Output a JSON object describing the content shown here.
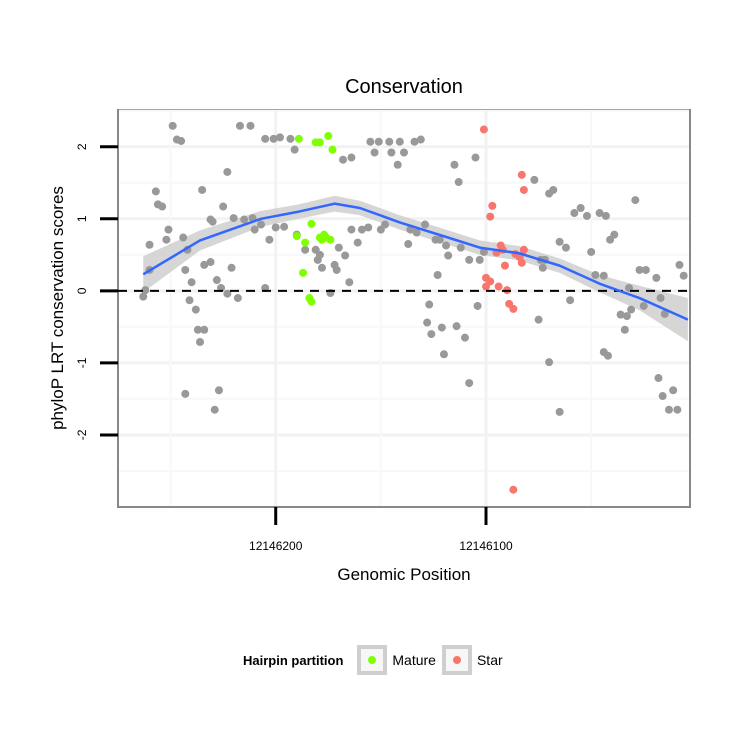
{
  "chart_data": {
    "type": "scatter",
    "title": "Conservation",
    "xlabel": "Genomic Position",
    "ylabel": "phyloP LRT conservation scores",
    "xlim": [
      12146275,
      12146003
    ],
    "ylim": [
      -3.0,
      2.51
    ],
    "x_reversed": true,
    "x_ticks": [
      12146200,
      12146100
    ],
    "x_tick_labels": [
      "12146200",
      "12146100"
    ],
    "y_ticks": [
      2,
      1,
      0,
      -1,
      -2
    ],
    "y_tick_labels": [
      "2",
      "1",
      "0",
      "-1",
      "-2"
    ],
    "reference_line": {
      "y": 0,
      "style": "dashed"
    },
    "grid": true,
    "legend": {
      "title": "Hairpin partition",
      "placement": "bottom",
      "entries": [
        {
          "name": "Mature",
          "color": "#7fff00"
        },
        {
          "name": "Star",
          "color": "#f8766d"
        }
      ]
    },
    "colors": {
      "other": "#999999",
      "Mature": "#7fff00",
      "Star": "#f8766d",
      "smooth": "#3366ff",
      "band": "#cccccc"
    },
    "series": [
      {
        "name": "Other",
        "points": [
          [
            12146263,
            -0.08
          ],
          [
            12146262,
            0.01
          ],
          [
            12146260,
            0.29
          ],
          [
            12146260,
            0.64
          ],
          [
            12146257,
            1.38
          ],
          [
            12146256,
            1.2
          ],
          [
            12146254,
            1.17
          ],
          [
            12146252,
            0.71
          ],
          [
            12146251,
            0.85
          ],
          [
            12146249,
            2.29
          ],
          [
            12146247,
            2.1
          ],
          [
            12146245,
            2.08
          ],
          [
            12146244,
            0.74
          ],
          [
            12146243,
            -1.43
          ],
          [
            12146243,
            0.29
          ],
          [
            12146241,
            -0.13
          ],
          [
            12146242,
            0.57
          ],
          [
            12146240,
            0.12
          ],
          [
            12146238,
            -0.26
          ],
          [
            12146237,
            -0.54
          ],
          [
            12146236,
            -0.71
          ],
          [
            12146234,
            -0.54
          ],
          [
            12146235,
            1.4
          ],
          [
            12146234,
            0.36
          ],
          [
            12146231,
            0.4
          ],
          [
            12146231,
            0.99
          ],
          [
            12146230,
            0.96
          ],
          [
            12146229,
            -1.65
          ],
          [
            12146228,
            0.15
          ],
          [
            12146227,
            -1.38
          ],
          [
            12146226,
            0.04
          ],
          [
            12146225,
            1.17
          ],
          [
            12146223,
            1.65
          ],
          [
            12146223,
            -0.04
          ],
          [
            12146221,
            0.32
          ],
          [
            12146220,
            1.01
          ],
          [
            12146218,
            -0.1
          ],
          [
            12146217,
            2.29
          ],
          [
            12146215,
            0.99
          ],
          [
            12146212,
            2.29
          ],
          [
            12146211,
            1.01
          ],
          [
            12146210,
            0.85
          ],
          [
            12146207,
            0.92
          ],
          [
            12146205,
            2.11
          ],
          [
            12146205,
            0.04
          ],
          [
            12146203,
            0.71
          ],
          [
            12146201,
            2.11
          ],
          [
            12146200,
            0.88
          ],
          [
            12146198,
            2.13
          ],
          [
            12146196,
            0.89
          ],
          [
            12146193,
            2.11
          ],
          [
            12146191,
            1.96
          ],
          [
            12146190,
            0.78
          ],
          [
            12146186,
            0.57
          ],
          [
            12146181,
            0.57
          ],
          [
            12146180,
            0.43
          ],
          [
            12146179,
            0.5
          ],
          [
            12146178,
            0.32
          ],
          [
            12146174,
            -0.03
          ],
          [
            12146172,
            0.36
          ],
          [
            12146171,
            0.29
          ],
          [
            12146170,
            0.6
          ],
          [
            12146168,
            1.82
          ],
          [
            12146167,
            0.49
          ],
          [
            12146164,
            1.85
          ],
          [
            12146165,
            0.12
          ],
          [
            12146164,
            0.85
          ],
          [
            12146161,
            0.67
          ],
          [
            12146159,
            0.85
          ],
          [
            12146156,
            0.88
          ],
          [
            12146155,
            2.07
          ],
          [
            12146153,
            1.92
          ],
          [
            12146151,
            2.07
          ],
          [
            12146150,
            0.85
          ],
          [
            12146148,
            0.92
          ],
          [
            12146146,
            2.07
          ],
          [
            12146145,
            1.92
          ],
          [
            12146142,
            1.75
          ],
          [
            12146141,
            2.07
          ],
          [
            12146139,
            1.92
          ],
          [
            12146137,
            0.65
          ],
          [
            12146136,
            0.85
          ],
          [
            12146134,
            2.07
          ],
          [
            12146133,
            0.81
          ],
          [
            12146131,
            2.1
          ],
          [
            12146129,
            0.92
          ],
          [
            12146128,
            -0.44
          ],
          [
            12146127,
            -0.19
          ],
          [
            12146126,
            -0.6
          ],
          [
            12146124,
            0.71
          ],
          [
            12146123,
            0.22
          ],
          [
            12146122,
            0.71
          ],
          [
            12146121,
            -0.51
          ],
          [
            12146120,
            -0.88
          ],
          [
            12146119,
            0.63
          ],
          [
            12146118,
            0.49
          ],
          [
            12146115,
            1.75
          ],
          [
            12146114,
            -0.49
          ],
          [
            12146113,
            1.51
          ],
          [
            12146112,
            0.6
          ],
          [
            12146110,
            -0.65
          ],
          [
            12146108,
            -1.28
          ],
          [
            12146108,
            0.43
          ],
          [
            12146105,
            1.85
          ],
          [
            12146103,
            0.43
          ],
          [
            12146104,
            -0.21
          ],
          [
            12146101,
            0.54
          ],
          [
            12146077,
            1.54
          ],
          [
            12146074,
            0.43
          ],
          [
            12146073,
            0.32
          ],
          [
            12146075,
            -0.4
          ],
          [
            12146072,
            0.43
          ],
          [
            12146070,
            -0.99
          ],
          [
            12146070,
            1.35
          ],
          [
            12146068,
            1.4
          ],
          [
            12146065,
            0.68
          ],
          [
            12146065,
            -1.68
          ],
          [
            12146062,
            0.6
          ],
          [
            12146060,
            -0.13
          ],
          [
            12146058,
            1.08
          ],
          [
            12146055,
            1.15
          ],
          [
            12146052,
            1.04
          ],
          [
            12146050,
            0.54
          ],
          [
            12146048,
            0.22
          ],
          [
            12146046,
            1.08
          ],
          [
            12146044,
            0.21
          ],
          [
            12146043,
            1.04
          ],
          [
            12146041,
            0.71
          ],
          [
            12146039,
            0.78
          ],
          [
            12146036,
            -0.33
          ],
          [
            12146033,
            -0.35
          ],
          [
            12146032,
            0.04
          ],
          [
            12146031,
            -0.26
          ],
          [
            12146029,
            1.26
          ],
          [
            12146027,
            0.29
          ],
          [
            12146025,
            -0.21
          ],
          [
            12146024,
            0.29
          ],
          [
            12146019,
            0.18
          ],
          [
            12146018,
            -1.21
          ],
          [
            12146017,
            -0.1
          ],
          [
            12146016,
            -1.46
          ],
          [
            12146015,
            -0.32
          ],
          [
            12146013,
            -1.65
          ],
          [
            12146011,
            -1.38
          ],
          [
            12146009,
            -1.65
          ],
          [
            12146008,
            0.36
          ],
          [
            12146006,
            0.21
          ],
          [
            12146044,
            -0.85
          ],
          [
            12146042,
            -0.9
          ],
          [
            12146034,
            -0.54
          ]
        ]
      },
      {
        "name": "Mature",
        "points": [
          [
            12146189,
            2.11
          ],
          [
            12146181,
            2.06
          ],
          [
            12146179,
            2.06
          ],
          [
            12146175,
            2.15
          ],
          [
            12146173,
            1.96
          ],
          [
            12146183,
            0.93
          ],
          [
            12146190,
            0.76
          ],
          [
            12146186,
            0.67
          ],
          [
            12146179,
            0.74
          ],
          [
            12146178,
            0.71
          ],
          [
            12146176,
            0.74
          ],
          [
            12146174,
            0.71
          ],
          [
            12146177,
            0.78
          ],
          [
            12146187,
            0.25
          ],
          [
            12146184,
            -0.1
          ],
          [
            12146183,
            -0.15
          ]
        ]
      },
      {
        "name": "Star",
        "points": [
          [
            12146101,
            2.24
          ],
          [
            12146098,
            1.03
          ],
          [
            12146097,
            1.18
          ],
          [
            12146083,
            1.61
          ],
          [
            12146082,
            1.4
          ],
          [
            12146100,
            0.18
          ],
          [
            12146100,
            0.06
          ],
          [
            12146098,
            0.13
          ],
          [
            12146095,
            0.53
          ],
          [
            12146093,
            0.63
          ],
          [
            12146092,
            0.57
          ],
          [
            12146091,
            0.35
          ],
          [
            12146090,
            0.01
          ],
          [
            12146089,
            -0.18
          ],
          [
            12146087,
            -0.25
          ],
          [
            12146086,
            0.51
          ],
          [
            12146084,
            0.47
          ],
          [
            12146083,
            0.39
          ],
          [
            12146082,
            0.57
          ],
          [
            12146087,
            -2.76
          ],
          [
            12146094,
            0.06
          ]
        ]
      }
    ],
    "smooth": {
      "x": [
        12146263,
        12146236,
        12146207,
        12146189,
        12146172,
        12146160,
        12146141,
        12146117,
        12146103,
        12146084,
        12146065,
        12146046,
        12146027,
        12146004
      ],
      "y": [
        0.23,
        0.7,
        1.0,
        1.1,
        1.21,
        1.15,
        0.95,
        0.73,
        0.6,
        0.52,
        0.35,
        0.1,
        -0.1,
        -0.4
      ],
      "se": [
        0.25,
        0.14,
        0.11,
        0.1,
        0.11,
        0.1,
        0.1,
        0.1,
        0.1,
        0.1,
        0.1,
        0.12,
        0.17,
        0.3
      ]
    }
  }
}
